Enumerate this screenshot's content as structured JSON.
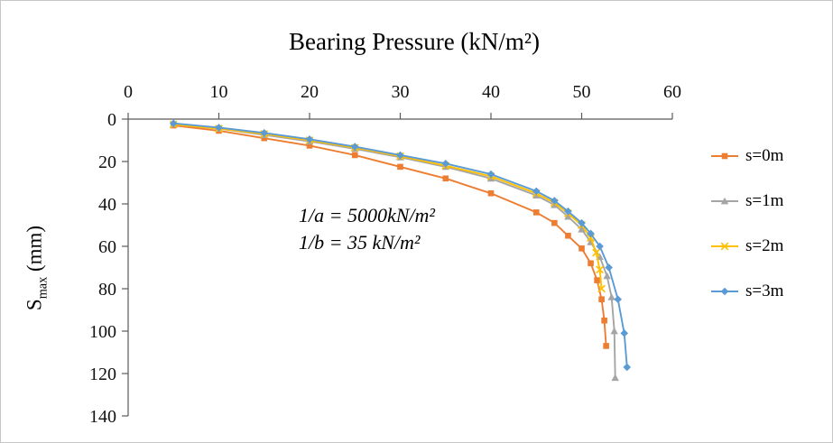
{
  "figure": {
    "y_axis_title": {
      "prefix": "S",
      "sub": "max",
      "suffix": " (mm)"
    },
    "annotation": {
      "line1": "1/a = 5000kN/m²",
      "line2": "1/b = 35 kN/m²"
    }
  },
  "chart_data": {
    "type": "line",
    "title": "Bearing Pressure (kN/m²)",
    "xlabel": "Bearing Pressure (kN/m²)",
    "ylabel": "Smax (mm)",
    "x_axis": {
      "min": 0,
      "max": 60,
      "tick_step": 10,
      "ticks": [
        0,
        10,
        20,
        30,
        40,
        50,
        60
      ],
      "position": "top"
    },
    "y_axis": {
      "min": 0,
      "max": 140,
      "tick_step": 20,
      "ticks": [
        0,
        20,
        40,
        60,
        80,
        100,
        120,
        140
      ],
      "inverted": true
    },
    "legend": {
      "position": "right",
      "entries": [
        "s=0m",
        "s=1m",
        "s=2m",
        "s=3m"
      ]
    },
    "annotations": [
      "1/a = 5000kN/m²",
      "1/b = 35 kN/m²"
    ],
    "axis_color": "#595959",
    "series": [
      {
        "name": "s=0m",
        "color": "#ED7D31",
        "marker": "square",
        "points": [
          [
            5,
            3
          ],
          [
            10,
            5.5
          ],
          [
            15,
            9
          ],
          [
            20,
            12.5
          ],
          [
            25,
            17
          ],
          [
            30,
            22.5
          ],
          [
            35,
            28
          ],
          [
            40,
            35
          ],
          [
            45,
            44
          ],
          [
            47,
            49
          ],
          [
            48.5,
            55
          ],
          [
            50,
            61
          ],
          [
            51,
            68
          ],
          [
            51.7,
            76
          ],
          [
            52.2,
            85
          ],
          [
            52.5,
            95
          ],
          [
            52.7,
            107
          ]
        ]
      },
      {
        "name": "s=1m",
        "color": "#A5A5A5",
        "marker": "triangle",
        "points": [
          [
            5,
            2.5
          ],
          [
            10,
            4.5
          ],
          [
            15,
            7.5
          ],
          [
            20,
            10.5
          ],
          [
            25,
            14
          ],
          [
            30,
            18
          ],
          [
            35,
            22.5
          ],
          [
            40,
            28
          ],
          [
            45,
            36
          ],
          [
            47,
            40.5
          ],
          [
            48.5,
            46
          ],
          [
            50,
            52
          ],
          [
            51,
            58
          ],
          [
            52,
            65
          ],
          [
            52.8,
            74
          ],
          [
            53.3,
            84
          ],
          [
            53.6,
            100
          ],
          [
            53.7,
            122
          ]
        ]
      },
      {
        "name": "s=2m",
        "color": "#FFC000",
        "marker": "x",
        "points": [
          [
            5,
            2.5
          ],
          [
            10,
            4.5
          ],
          [
            15,
            7
          ],
          [
            20,
            10
          ],
          [
            25,
            13.5
          ],
          [
            30,
            17.5
          ],
          [
            35,
            22
          ],
          [
            40,
            27
          ],
          [
            45,
            35
          ],
          [
            47,
            39.5
          ],
          [
            48.5,
            44.5
          ],
          [
            50,
            50
          ],
          [
            51,
            56
          ],
          [
            51.6,
            63
          ],
          [
            52,
            71
          ],
          [
            52.2,
            80
          ]
        ]
      },
      {
        "name": "s=3m",
        "color": "#5B9BD5",
        "marker": "diamond",
        "points": [
          [
            5,
            2
          ],
          [
            10,
            4
          ],
          [
            15,
            6.5
          ],
          [
            20,
            9.5
          ],
          [
            25,
            13
          ],
          [
            30,
            17
          ],
          [
            35,
            21
          ],
          [
            40,
            26
          ],
          [
            45,
            34
          ],
          [
            47,
            38.5
          ],
          [
            48.5,
            43.5
          ],
          [
            50,
            49
          ],
          [
            51,
            54
          ],
          [
            52,
            60
          ],
          [
            53,
            70
          ],
          [
            54,
            85
          ],
          [
            54.7,
            101
          ],
          [
            55,
            117
          ]
        ]
      }
    ]
  }
}
